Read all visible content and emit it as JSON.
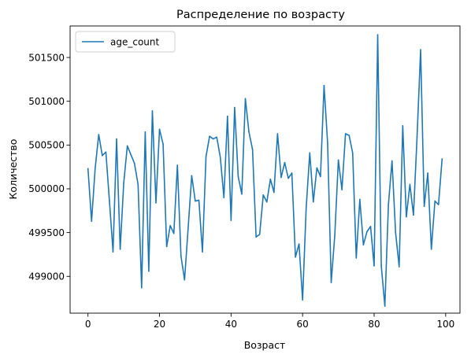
{
  "chart_data": {
    "type": "line",
    "title": "Распределение по возрасту",
    "xlabel": "Возраст",
    "ylabel": "Количество",
    "xlim": [
      -5,
      104
    ],
    "ylim": [
      498580,
      501860
    ],
    "xticks": [
      0,
      20,
      40,
      60,
      80,
      100
    ],
    "yticks": [
      499000,
      499500,
      500000,
      500500,
      501000,
      501500
    ],
    "grid": false,
    "legend": {
      "placement": "top-left"
    },
    "series": [
      {
        "name": "age_count",
        "color": "#1f77b4",
        "x": [
          0,
          1,
          2,
          3,
          4,
          5,
          6,
          7,
          8,
          9,
          10,
          11,
          12,
          13,
          14,
          15,
          16,
          17,
          18,
          19,
          20,
          21,
          22,
          23,
          24,
          25,
          26,
          27,
          28,
          29,
          30,
          31,
          32,
          33,
          34,
          35,
          36,
          37,
          38,
          39,
          40,
          41,
          42,
          43,
          44,
          45,
          46,
          47,
          48,
          49,
          50,
          51,
          52,
          53,
          54,
          55,
          56,
          57,
          58,
          59,
          60,
          61,
          62,
          63,
          64,
          65,
          66,
          67,
          68,
          69,
          70,
          71,
          72,
          73,
          74,
          75,
          76,
          77,
          78,
          79,
          80,
          81,
          82,
          83,
          84,
          85,
          86,
          87,
          88,
          89,
          90,
          91,
          92,
          93,
          94,
          95,
          96,
          97,
          98,
          99
        ],
        "values": [
          500230,
          499630,
          500230,
          500620,
          500380,
          500420,
          499860,
          499280,
          500570,
          499310,
          500070,
          500490,
          500390,
          500290,
          500050,
          498870,
          500650,
          499060,
          500890,
          499840,
          500680,
          500510,
          499340,
          499580,
          499490,
          500270,
          499230,
          498960,
          499550,
          500150,
          499860,
          499870,
          499280,
          500370,
          500600,
          500570,
          500590,
          500360,
          499900,
          500830,
          499640,
          500930,
          500140,
          499940,
          501030,
          500650,
          500450,
          499450,
          499480,
          499930,
          499850,
          500110,
          499960,
          500630,
          500130,
          500300,
          500120,
          500180,
          499220,
          499370,
          498730,
          499780,
          500410,
          499850,
          500240,
          500140,
          501180,
          500520,
          498930,
          499470,
          500330,
          499990,
          500630,
          500610,
          500410,
          499210,
          499880,
          499360,
          499510,
          499570,
          499120,
          501760,
          499120,
          498660,
          499820,
          500320,
          499500,
          499110,
          500720,
          499680,
          500050,
          499700,
          500590,
          501590,
          499800,
          500180,
          499310,
          499860,
          499820,
          500340
        ]
      }
    ]
  }
}
